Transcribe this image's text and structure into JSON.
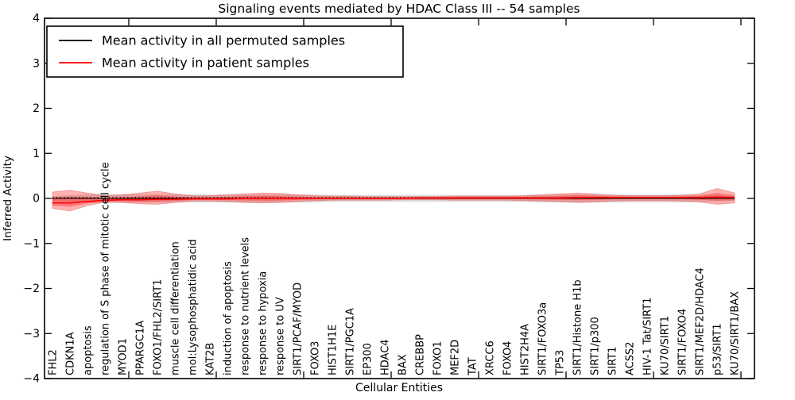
{
  "figure": {
    "background": "#ffffff",
    "frame_color": "#000000"
  },
  "chart_data": {
    "type": "line",
    "title": "Signaling events mediated by HDAC Class III -- 54 samples",
    "xlabel": "Cellular Entities",
    "ylabel": "Inferred Activity",
    "ylim": [
      -4,
      4
    ],
    "yticks": [
      4,
      3,
      2,
      1,
      0,
      -1,
      -2,
      -3,
      -4
    ],
    "ytick_labels": [
      "4",
      "3",
      "2",
      "1",
      "0",
      "−1",
      "−2",
      "−3",
      "−4"
    ],
    "grid": false,
    "legend_position": "upper left",
    "categories": [
      "FHL2",
      "CDKN1A",
      "apoptosis",
      "regulation of S phase of mitotic cell cycle",
      "MYOD1",
      "PPARGC1A",
      "FOXO1/FHL2/SIRT1",
      "muscle cell differentiation",
      "mol:Lysophosphatidic acid",
      "KAT2B",
      "induction of apoptosis",
      "response to nutrient levels",
      "response to hypoxia",
      "response to UV",
      "SIRT1/PCAF/MYOD",
      "FOXO3",
      "HIST1H1E",
      "SIRT1/PGC1A",
      "EP300",
      "HDAC4",
      "BAX",
      "CREBBP",
      "FOXO1",
      "MEF2D",
      "TAT",
      "XRCC6",
      "FOXO4",
      "HIST2H4A",
      "SIRT1/FOXO3a",
      "TP53",
      "SIRT1/Histone H1b",
      "SIRT1/p300",
      "SIRT1",
      "ACSS2",
      "HIV-1 Tat/SIRT1",
      "KU70/SIRT1",
      "SIRT1/FOXO4",
      "SIRT1/MEF2D/HDAC4",
      "p53/SIRT1",
      "KU70/SIRT1/BAX"
    ],
    "series": [
      {
        "name": "Mean activity in all permuted samples",
        "color": "#000000",
        "band_color": "#808080",
        "values": [
          0,
          0,
          0,
          0,
          0,
          0,
          0,
          0,
          0,
          0,
          0,
          0,
          0,
          0,
          0,
          0,
          0,
          0,
          0,
          0,
          0,
          0,
          0,
          0,
          0,
          0,
          0,
          0,
          0,
          0,
          0,
          0,
          0,
          0,
          0,
          0,
          0,
          0,
          0,
          0
        ],
        "band_upper": [
          0.05,
          0.07,
          0.09,
          0.1,
          0.1,
          0.09,
          0.09,
          0.09,
          0.09,
          0.09,
          0.09,
          0.09,
          0.09,
          0.09,
          0.09,
          0.09,
          0.08,
          0.08,
          0.08,
          0.08,
          0.08,
          0.08,
          0.08,
          0.08,
          0.08,
          0.08,
          0.08,
          0.08,
          0.09,
          0.09,
          0.09,
          0.09,
          0.09,
          0.09,
          0.09,
          0.09,
          0.09,
          0.08,
          0.07,
          0.05
        ],
        "band_lower": [
          -0.05,
          -0.07,
          -0.09,
          -0.1,
          -0.1,
          -0.09,
          -0.09,
          -0.09,
          -0.09,
          -0.09,
          -0.09,
          -0.09,
          -0.09,
          -0.09,
          -0.09,
          -0.09,
          -0.08,
          -0.08,
          -0.08,
          -0.08,
          -0.08,
          -0.08,
          -0.08,
          -0.08,
          -0.08,
          -0.08,
          -0.08,
          -0.08,
          -0.09,
          -0.09,
          -0.09,
          -0.09,
          -0.09,
          -0.09,
          -0.09,
          -0.09,
          -0.09,
          -0.08,
          -0.07,
          -0.05
        ]
      },
      {
        "name": "Mean activity in patient samples",
        "color": "#ff0000",
        "band_color": "#ff0000",
        "values": [
          -0.1,
          -0.1,
          -0.07,
          -0.04,
          -0.03,
          -0.03,
          -0.02,
          -0.02,
          -0.01,
          -0.01,
          -0.01,
          0,
          0,
          0,
          0,
          0,
          0,
          0,
          0,
          0,
          0,
          0.01,
          0.01,
          0.01,
          0.01,
          0.01,
          0.01,
          0.01,
          0.01,
          0.01,
          0.02,
          0.02,
          0.02,
          0.02,
          0.02,
          0.02,
          0.02,
          0.02,
          0.03,
          0.02
        ],
        "band_upper": [
          0.14,
          0.18,
          0.12,
          0.06,
          0.08,
          0.12,
          0.16,
          0.1,
          0.06,
          0.06,
          0.08,
          0.1,
          0.12,
          0.11,
          0.08,
          0.06,
          0.05,
          0.05,
          0.04,
          0.04,
          0.04,
          0.04,
          0.04,
          0.05,
          0.05,
          0.05,
          0.05,
          0.06,
          0.08,
          0.1,
          0.12,
          0.1,
          0.07,
          0.06,
          0.06,
          0.06,
          0.07,
          0.1,
          0.22,
          0.12
        ],
        "band_lower": [
          -0.22,
          -0.28,
          -0.16,
          -0.08,
          -0.09,
          -0.12,
          -0.13,
          -0.09,
          -0.06,
          -0.06,
          -0.07,
          -0.09,
          -0.1,
          -0.09,
          -0.07,
          -0.05,
          -0.04,
          -0.04,
          -0.04,
          -0.04,
          -0.03,
          -0.03,
          -0.03,
          -0.04,
          -0.04,
          -0.04,
          -0.04,
          -0.05,
          -0.06,
          -0.07,
          -0.09,
          -0.08,
          -0.06,
          -0.05,
          -0.05,
          -0.05,
          -0.06,
          -0.08,
          -0.13,
          -0.1
        ]
      }
    ]
  },
  "legend": {
    "entries": [
      {
        "label": "Mean activity in all permuted samples",
        "color": "#000000"
      },
      {
        "label": "Mean activity in patient samples",
        "color": "#ff0000"
      }
    ]
  }
}
